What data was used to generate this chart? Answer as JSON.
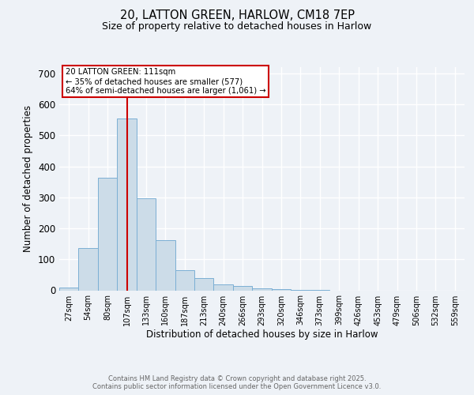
{
  "title_line1": "20, LATTON GREEN, HARLOW, CM18 7EP",
  "title_line2": "Size of property relative to detached houses in Harlow",
  "xlabel": "Distribution of detached houses by size in Harlow",
  "ylabel": "Number of detached properties",
  "categories": [
    "27sqm",
    "54sqm",
    "80sqm",
    "107sqm",
    "133sqm",
    "160sqm",
    "187sqm",
    "213sqm",
    "240sqm",
    "266sqm",
    "293sqm",
    "320sqm",
    "346sqm",
    "373sqm",
    "399sqm",
    "426sqm",
    "453sqm",
    "479sqm",
    "506sqm",
    "532sqm",
    "559sqm"
  ],
  "values": [
    8,
    137,
    362,
    554,
    298,
    161,
    65,
    40,
    18,
    13,
    7,
    5,
    2,
    1,
    0,
    0,
    0,
    0,
    0,
    0,
    0
  ],
  "bar_color": "#ccdce8",
  "bar_edge_color": "#7bafd4",
  "red_line_index": 3,
  "annotation_title": "20 LATTON GREEN: 111sqm",
  "annotation_line2": "← 35% of detached houses are smaller (577)",
  "annotation_line3": "64% of semi-detached houses are larger (1,061) →",
  "annotation_box_color": "#ffffff",
  "annotation_box_edge": "#cc0000",
  "vline_color": "#cc0000",
  "ylim": [
    0,
    720
  ],
  "yticks": [
    0,
    100,
    200,
    300,
    400,
    500,
    600,
    700
  ],
  "footer_line1": "Contains HM Land Registry data © Crown copyright and database right 2025.",
  "footer_line2": "Contains public sector information licensed under the Open Government Licence v3.0.",
  "bg_color": "#eef2f7",
  "plot_bg_color": "#eef2f7",
  "grid_color": "#ffffff"
}
